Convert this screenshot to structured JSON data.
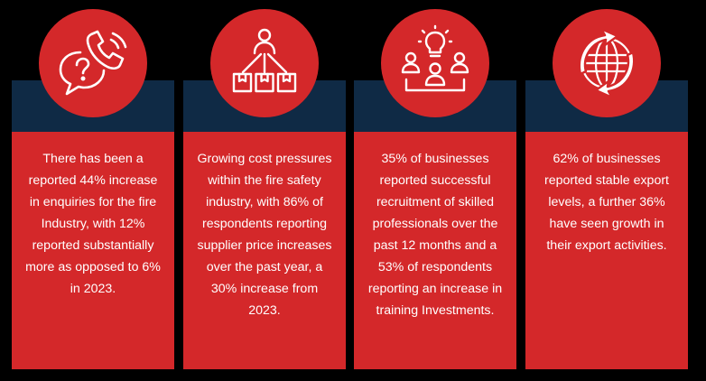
{
  "colors": {
    "red": "#d4282a",
    "navy": "#0f2a45",
    "background": "#000000",
    "text": "#ffffff"
  },
  "cards": [
    {
      "icon": "phone-question-icon",
      "text": "There has been a reported 44% increase in enquiries for the fire Industry, with 12% reported substantially more as opposed to 6% in 2023."
    },
    {
      "icon": "supply-chain-icon",
      "text": "Growing cost pressures within the fire safety industry, with 86% of respondents reporting supplier price increases over the past year, a 30% increase from 2023."
    },
    {
      "icon": "team-idea-icon",
      "text": "35% of businesses reported successful recruitment of skilled professionals over the past 12 months and a 53% of respondents reporting an increase in training Investments."
    },
    {
      "icon": "globe-arrows-icon",
      "text": "62% of businesses reported stable export levels, a further 36% have seen growth in their export activities."
    }
  ]
}
